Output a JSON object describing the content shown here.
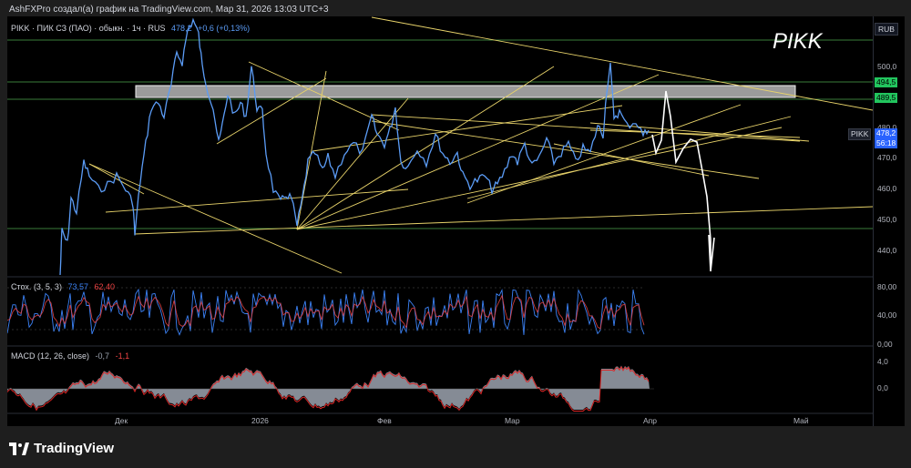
{
  "header": {
    "publish_line": "AshFXPro создал(а) график на TradingView.com, Мар 31, 2026 13:03 UTC+3"
  },
  "legend": {
    "symbol": "PIKK · ПИК СЗ (ПАО) · обыкн. · 1ч · RUS",
    "price": "478,2",
    "change": "+0,6 (+0,13%)"
  },
  "watermark": "PIKK",
  "currency_button": "RUB",
  "price_axis": {
    "ticks": [
      "500,0",
      "490,0",
      "480,0",
      "470,0",
      "460,0",
      "450,0",
      "440,0"
    ],
    "tag_upper": "494,5",
    "tag_lower": "489,5",
    "symbol_tag": "PIKK",
    "current_price": "478,2",
    "countdown": "56:18"
  },
  "stoch": {
    "title": "Стох. (3, 5, 3)",
    "k_value": "73,57",
    "d_value": "62,40",
    "ticks": [
      "80,00",
      "40,00",
      "0,00"
    ]
  },
  "macd": {
    "title": "MACD (12, 26, close)",
    "v1": "-0,7",
    "v2": "-1,1",
    "ticks": [
      "4,0",
      "0,0"
    ]
  },
  "time_axis": [
    "Дек",
    "2026",
    "Фев",
    "Мар",
    "Апр",
    "Май"
  ],
  "brand": "TradingView",
  "colors": {
    "price_line": "#5b9cf6",
    "trend_lines": "#e8d36a",
    "support_lines": "#3a7d3a",
    "zone_fill": "#c8c8c8",
    "tag_green": "#22c55e",
    "stoch_k": "#3b82f6",
    "stoch_d": "#ef4444",
    "macd_hist": "#9ca3af",
    "macd_line": "#dc2626"
  }
}
